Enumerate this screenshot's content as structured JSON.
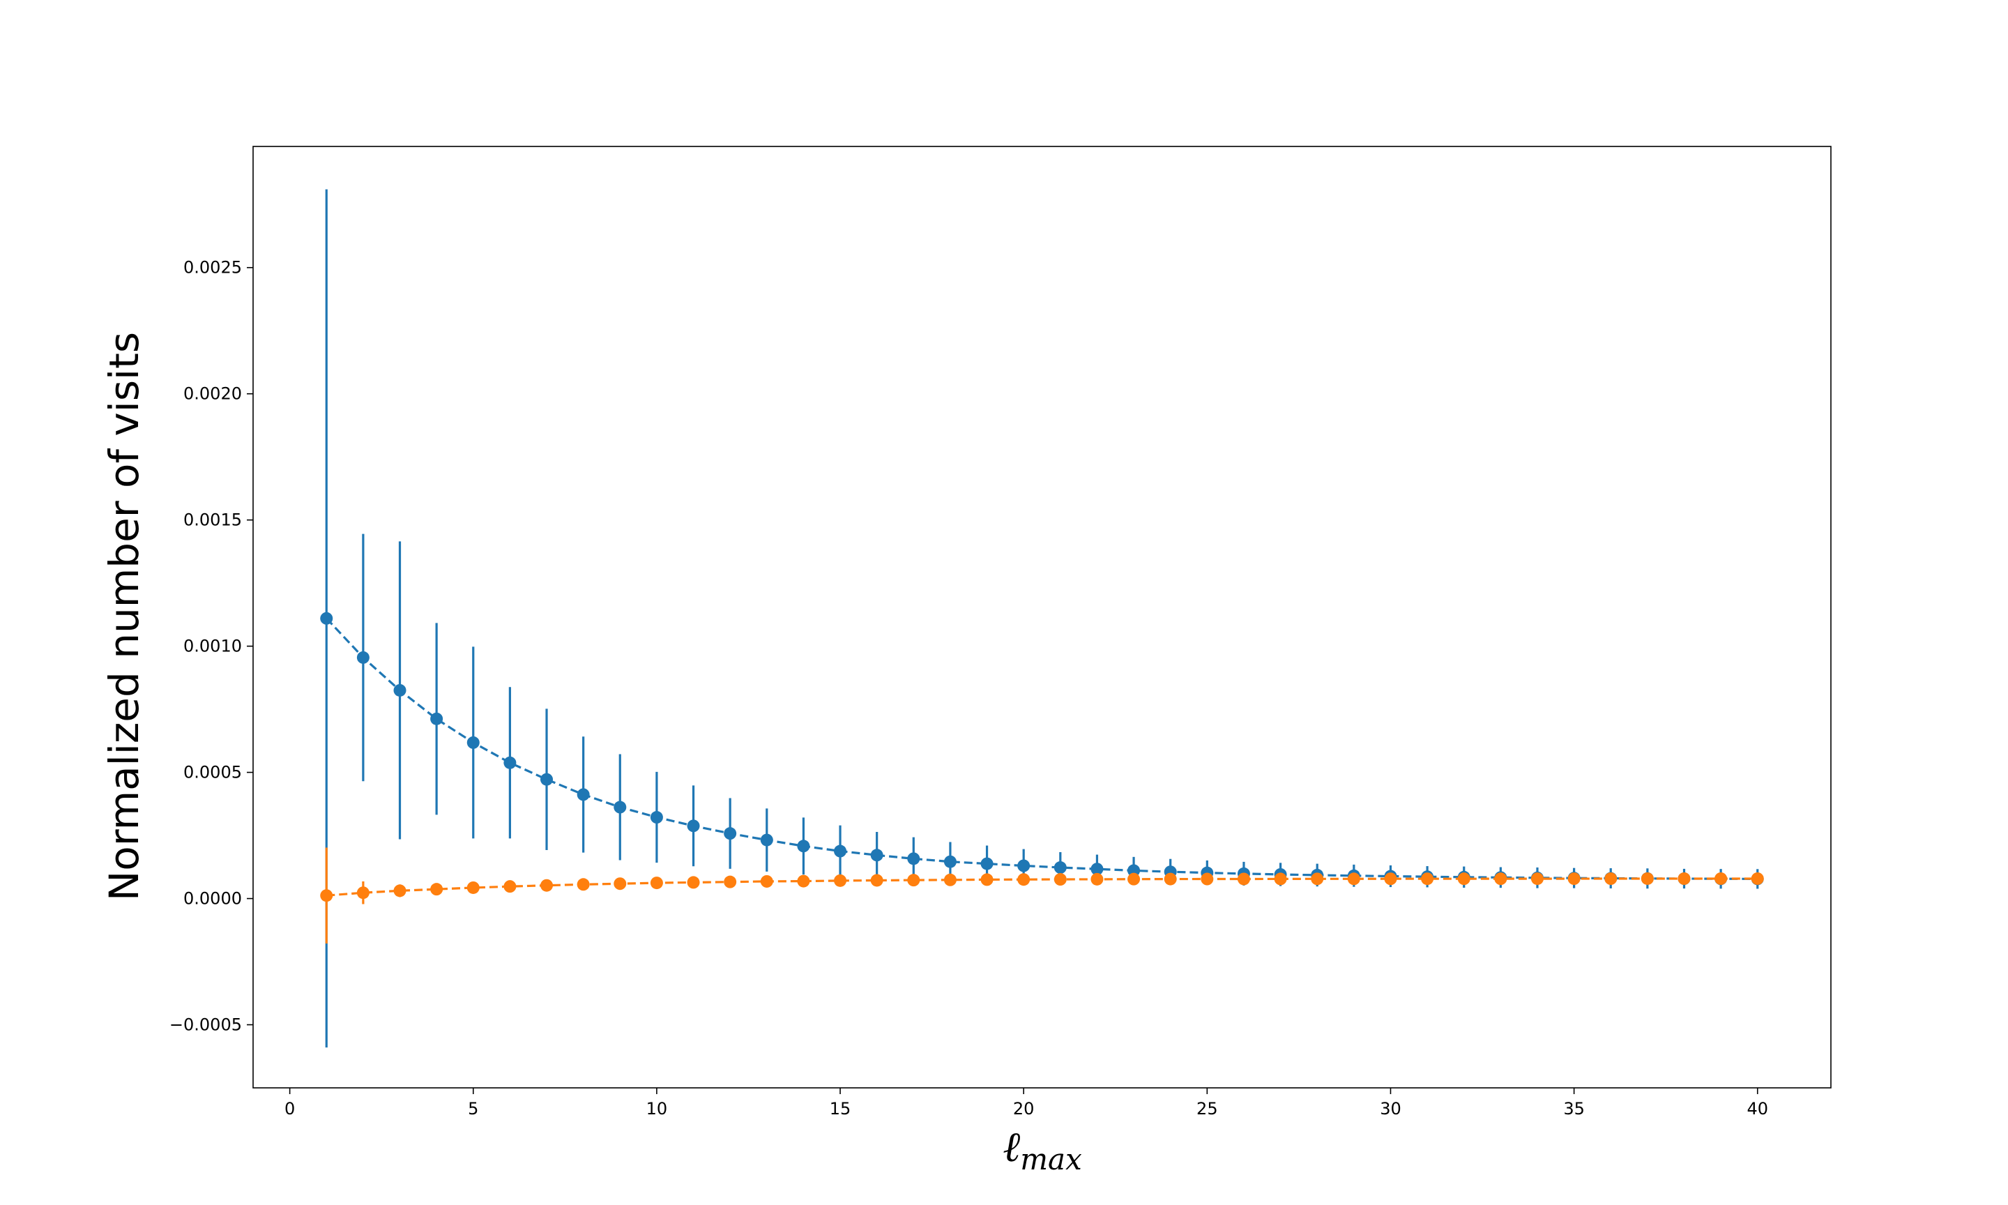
{
  "chart_data": {
    "type": "scatter",
    "title": "",
    "xlabel": "ℓ",
    "xlabel_subscript": "max",
    "ylabel": "Normalized number of visits",
    "xlim": [
      -1,
      42
    ],
    "ylim": [
      -0.00075,
      0.00298
    ],
    "xticks": [
      0,
      5,
      10,
      15,
      20,
      25,
      30,
      35,
      40
    ],
    "xtick_labels": [
      "0",
      "5",
      "10",
      "15",
      "20",
      "25",
      "30",
      "35",
      "40"
    ],
    "yticks": [
      -0.0005,
      0.0,
      0.0005,
      0.001,
      0.0015,
      0.002,
      0.0025
    ],
    "ytick_labels": [
      "−0.0005",
      "0.0000",
      "0.0005",
      "0.0010",
      "0.0015",
      "0.0020",
      "0.0025"
    ],
    "grid": false,
    "legend": "none",
    "x": [
      1,
      2,
      3,
      4,
      5,
      6,
      7,
      8,
      9,
      10,
      11,
      12,
      13,
      14,
      15,
      16,
      17,
      18,
      19,
      20,
      21,
      22,
      23,
      24,
      25,
      26,
      27,
      28,
      29,
      30,
      31,
      32,
      33,
      34,
      35,
      36,
      37,
      38,
      39,
      40
    ],
    "series": [
      {
        "color": "#1f77b4",
        "marker": "circle",
        "linestyle": "dashed",
        "values": [
          0.00111,
          0.000955,
          0.000825,
          0.000712,
          0.000618,
          0.000538,
          0.000472,
          0.000412,
          0.000362,
          0.000322,
          0.000288,
          0.000258,
          0.000232,
          0.000208,
          0.000188,
          0.000172,
          0.000158,
          0.000146,
          0.000138,
          0.00013,
          0.000123,
          0.000117,
          0.000111,
          0.000106,
          0.000102,
          9.85e-05,
          9.55e-05,
          9.3e-05,
          9.05e-05,
          8.85e-05,
          8.65e-05,
          8.5e-05,
          8.35e-05,
          8.22e-05,
          8.12e-05,
          8.02e-05,
          7.95e-05,
          7.88e-05,
          7.82e-05,
          7.78e-05
        ],
        "errors": [
          0.0017,
          0.00049,
          0.00059,
          0.00038,
          0.00038,
          0.0003,
          0.00028,
          0.00023,
          0.00021,
          0.00018,
          0.00016,
          0.00014,
          0.000125,
          0.000113,
          0.000102,
          9.2e-05,
          8.5e-05,
          7.8e-05,
          7.2e-05,
          6.6e-05,
          6.1e-05,
          5.7e-05,
          5.4e-05,
          5.1e-05,
          4.9e-05,
          4.7e-05,
          4.6e-05,
          4.5e-05,
          4.4e-05,
          4.3e-05,
          4.2e-05,
          4.2e-05,
          4.1e-05,
          4.1e-05,
          4e-05,
          4e-05,
          4e-05,
          3.9e-05,
          3.9e-05,
          3.9e-05
        ]
      },
      {
        "color": "#ff7f0e",
        "marker": "circle",
        "linestyle": "dashed",
        "values": [
          1.2e-05,
          2.3e-05,
          3.1e-05,
          3.7e-05,
          4.3e-05,
          4.8e-05,
          5.2e-05,
          5.6e-05,
          5.9e-05,
          6.2e-05,
          6.4e-05,
          6.6e-05,
          6.8e-05,
          6.9e-05,
          7.1e-05,
          7.2e-05,
          7.3e-05,
          7.4e-05,
          7.5e-05,
          7.55e-05,
          7.6e-05,
          7.65e-05,
          7.7e-05,
          7.72e-05,
          7.74e-05,
          7.76e-05,
          7.78e-05,
          7.8e-05,
          7.81e-05,
          7.82e-05,
          7.83e-05,
          7.84e-05,
          7.85e-05,
          7.86e-05,
          7.87e-05,
          7.88e-05,
          7.89e-05,
          7.9e-05,
          7.9e-05,
          7.9e-05
        ],
        "errors": [
          0.00019,
          4.5e-05,
          2.5e-05,
          2e-05,
          1.8e-05,
          1.7e-05,
          1.7e-05,
          1.7e-05,
          1.7e-05,
          1.7e-05,
          1.7e-05,
          1.7e-05,
          1.7e-05,
          1.7e-05,
          1.7e-05,
          1.7e-05,
          1.7e-05,
          1.7e-05,
          1.7e-05,
          1.7e-05,
          1.7e-05,
          1.7e-05,
          1.7e-05,
          1.7e-05,
          1.7e-05,
          1.7e-05,
          1.7e-05,
          1.7e-05,
          1.7e-05,
          1.7e-05,
          1.7e-05,
          1.7e-05,
          1.7e-05,
          1.7e-05,
          1.7e-05,
          1.7e-05,
          1.7e-05,
          1.7e-05,
          1.7e-05,
          1.7e-05
        ]
      }
    ]
  }
}
